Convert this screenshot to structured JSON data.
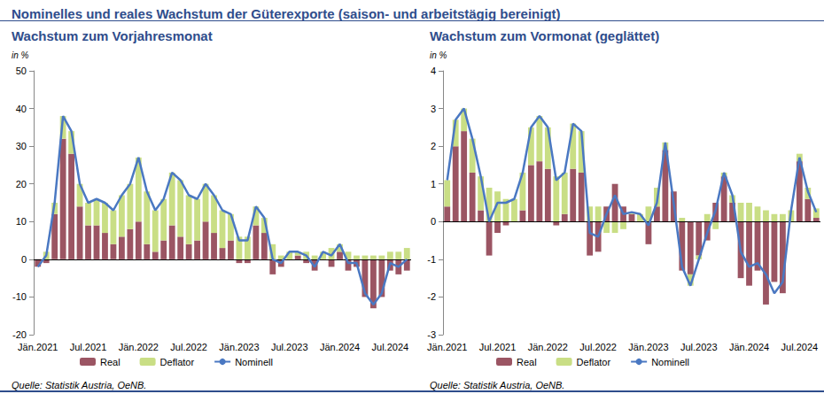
{
  "title": "Nominelles und reales Wachstum der Güterexporte (saison- und arbeitstägig bereinigt)",
  "chart_data": [
    {
      "type": "bar",
      "title": "Wachstum zum Vorjahresmonat",
      "ylabel": "in %",
      "source": "Quelle: Statistik Austria, OeNB.",
      "stacked": true,
      "grid": false,
      "legend": "bottom",
      "categories": [
        "Jän.2021",
        null,
        null,
        null,
        null,
        null,
        "Jul.2021",
        null,
        null,
        null,
        null,
        null,
        "Jän.2022",
        null,
        null,
        null,
        null,
        null,
        "Jul.2022",
        null,
        null,
        null,
        null,
        null,
        "Jän.2023",
        null,
        null,
        null,
        null,
        null,
        "Jul.2023",
        null,
        null,
        null,
        null,
        null,
        "Jän.2024",
        null,
        null,
        null,
        null,
        null,
        "Jul.2024",
        null,
        null
      ],
      "ylim": [
        -20,
        50
      ],
      "yticks": [
        -20,
        -10,
        0,
        10,
        20,
        30,
        40,
        50
      ],
      "series": [
        {
          "name": "Real",
          "type": "bar",
          "color": "#9b5563",
          "values": [
            -2,
            -1,
            12,
            32,
            28,
            14,
            9,
            9,
            7,
            4,
            6,
            8,
            10,
            4,
            2,
            5,
            9,
            6,
            4,
            5,
            10,
            7,
            3,
            5,
            -1,
            -1,
            9,
            7,
            -4,
            -2,
            0,
            1,
            -1,
            -3,
            0,
            -2,
            2,
            -3,
            -2,
            -10,
            -13,
            -10,
            -3,
            -4,
            -3
          ]
        },
        {
          "name": "Deflator",
          "type": "bar",
          "color": "#c9de85",
          "values": [
            0,
            2,
            3,
            6,
            6,
            6,
            6,
            7,
            8,
            9,
            11,
            12,
            17,
            14,
            11,
            11,
            14,
            15,
            13,
            11,
            10,
            10,
            10,
            7,
            6,
            6,
            5,
            4,
            4,
            1,
            2,
            1,
            2,
            1,
            2,
            3,
            2,
            2,
            1,
            1,
            1,
            1,
            2,
            2,
            3
          ]
        },
        {
          "name": "Nominell",
          "type": "line",
          "color": "#4a78c2",
          "values": [
            -2,
            1,
            15,
            38,
            34,
            20,
            15,
            16,
            15,
            13,
            17,
            20,
            27,
            18,
            13,
            16,
            23,
            21,
            17,
            16,
            20,
            17,
            13,
            12,
            5,
            5,
            14,
            11,
            0,
            -1,
            2,
            2,
            1,
            -2,
            2,
            1,
            4,
            -1,
            -1,
            -9,
            -12,
            -9,
            -1,
            -2,
            0
          ]
        }
      ]
    },
    {
      "type": "bar",
      "title": "Wachstum zum Vormonat (geglättet)",
      "ylabel": "in %",
      "source": "Quelle: Statistik Austria, OeNB.",
      "stacked": true,
      "grid": false,
      "legend": "bottom",
      "categories": [
        "Jän.2021",
        null,
        null,
        null,
        null,
        null,
        "Jul.2021",
        null,
        null,
        null,
        null,
        null,
        "Jän.2022",
        null,
        null,
        null,
        null,
        null,
        "Jul.2022",
        null,
        null,
        null,
        null,
        null,
        "Jän.2023",
        null,
        null,
        null,
        null,
        null,
        "Jul.2023",
        null,
        null,
        null,
        null,
        null,
        "Jän.2024",
        null,
        null,
        null,
        null,
        null,
        "Jul.2024",
        null,
        null
      ],
      "ylim": [
        -3,
        4
      ],
      "yticks": [
        -3,
        -2,
        -1,
        0,
        1,
        2,
        3,
        4
      ],
      "series": [
        {
          "name": "Real",
          "type": "bar",
          "color": "#9b5563",
          "values": [
            0.4,
            2.0,
            2.4,
            1.3,
            0.3,
            -0.9,
            -0.3,
            -0.1,
            0.0,
            0.3,
            1.5,
            1.6,
            1.4,
            -0.1,
            0.2,
            1.4,
            1.3,
            -0.9,
            -0.8,
            0.4,
            1.0,
            0.4,
            0.2,
            0.0,
            -0.6,
            0.4,
            1.9,
            0.8,
            -1.3,
            -1.4,
            -0.9,
            -0.5,
            0.5,
            1.2,
            0.5,
            -1.5,
            -1.7,
            -1.3,
            -2.2,
            -1.6,
            -1.9,
            0.0,
            1.6,
            0.6,
            0.1
          ]
        },
        {
          "name": "Deflator",
          "type": "bar",
          "color": "#c9de85",
          "values": [
            0.7,
            0.7,
            0.6,
            0.9,
            0.9,
            0.9,
            0.8,
            0.6,
            0.6,
            1.0,
            1.0,
            1.2,
            1.1,
            1.2,
            1.1,
            1.2,
            1.1,
            0.4,
            0.4,
            -0.3,
            -0.3,
            -0.2,
            0.05,
            0.2,
            0.4,
            0.5,
            0.2,
            0.0,
            0.1,
            -0.3,
            -0.1,
            0.2,
            -0.2,
            0.1,
            0.2,
            0.5,
            0.5,
            0.4,
            0.3,
            0.2,
            0.2,
            0.3,
            0.2,
            0.3,
            0.25
          ]
        },
        {
          "name": "Nominell",
          "type": "line",
          "color": "#4a78c2",
          "values": [
            1.1,
            2.7,
            3.0,
            2.2,
            1.2,
            0.0,
            0.5,
            0.5,
            0.6,
            1.3,
            2.5,
            2.8,
            2.5,
            1.1,
            1.3,
            2.6,
            2.4,
            -0.3,
            -0.4,
            0.2,
            0.7,
            0.2,
            0.25,
            0.2,
            -0.1,
            0.5,
            2.1,
            0.5,
            -1.2,
            -1.7,
            -1.0,
            -0.3,
            0.3,
            1.3,
            0.7,
            -0.8,
            -1.2,
            -1.1,
            -1.4,
            -1.9,
            -1.6,
            0.3,
            1.7,
            0.8,
            0.25
          ]
        }
      ]
    }
  ]
}
